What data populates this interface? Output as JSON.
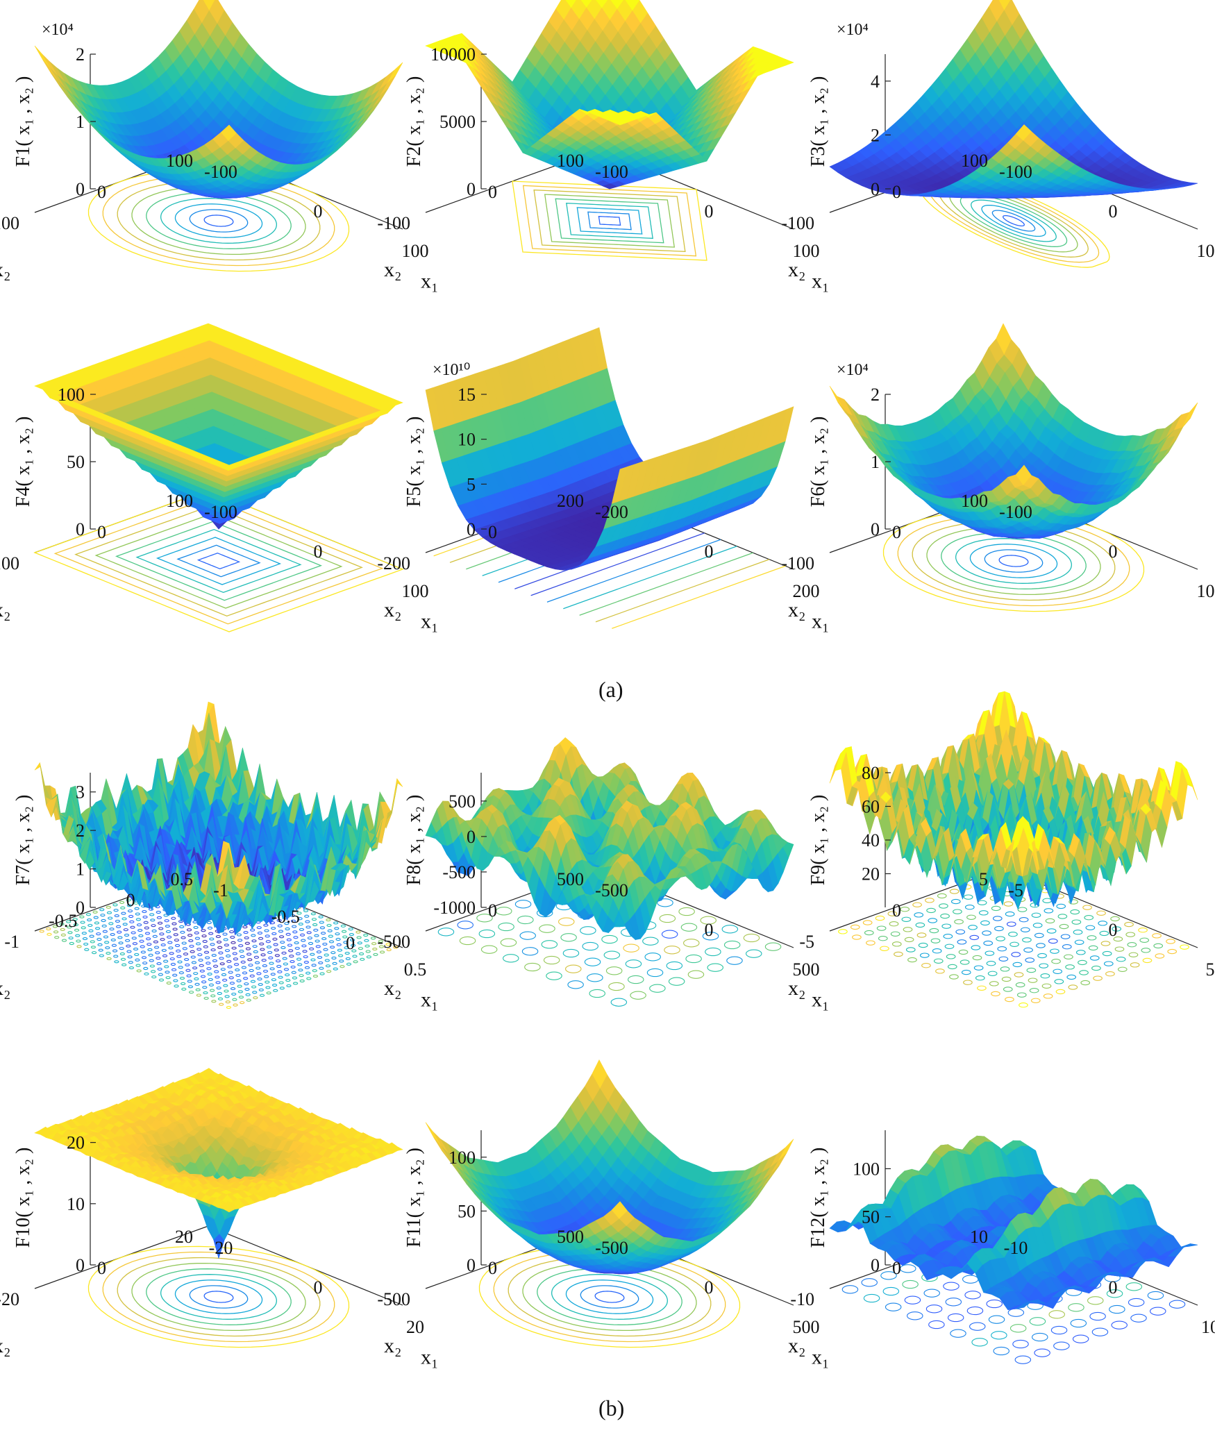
{
  "figure": {
    "captions": [
      "(a)",
      "(b)"
    ]
  },
  "colormap": [
    "#3e26a8",
    "#2f5efe",
    "#1889e6",
    "#12aed6",
    "#2bc6a0",
    "#82c960",
    "#d2c13f",
    "#fec937",
    "#f9fb15"
  ],
  "chart_data": [
    {
      "type": "surface",
      "func": "sphere",
      "label": "F1",
      "zlabel": "F1( x₁ , x₂ )",
      "multiplier": "×10⁴",
      "zticks": [
        "0",
        "1",
        "2"
      ],
      "zlim": [
        0,
        2
      ],
      "x1_ticks": [
        "-100",
        "0",
        "100"
      ],
      "x2_ticks": [
        "-100",
        "0",
        "100"
      ],
      "xlabel": "x₁",
      "ylabel": "x₂",
      "xlim": [
        -100,
        100
      ],
      "ylim": [
        -100,
        100
      ],
      "contour": "rings"
    },
    {
      "type": "surface",
      "func": "abs_sum",
      "label": "F2",
      "zlabel": "F2( x₁ , x₂ )",
      "multiplier": "",
      "zticks": [
        "0",
        "5000",
        "10000"
      ],
      "zlim": [
        0,
        10000
      ],
      "x1_ticks": [
        "-100",
        "0",
        "100"
      ],
      "x2_ticks": [
        "-100",
        "0",
        "100"
      ],
      "xlabel": "x₁",
      "ylabel": "x₂",
      "xlim": [
        -100,
        100
      ],
      "ylim": [
        -100,
        100
      ],
      "contour": "diamond"
    },
    {
      "type": "surface",
      "func": "schwefel12",
      "label": "F3",
      "zlabel": "F3( x₁ , x₂ )",
      "multiplier": "×10⁴",
      "zticks": [
        "0",
        "2",
        "4"
      ],
      "zlim": [
        0,
        5
      ],
      "x1_ticks": [
        "-100",
        "0",
        "100"
      ],
      "x2_ticks": [
        "-100",
        "0",
        "100"
      ],
      "xlabel": "x₁",
      "ylabel": "x₂",
      "xlim": [
        -100,
        100
      ],
      "ylim": [
        -100,
        100
      ],
      "contour": "ellipse"
    },
    {
      "type": "surface",
      "func": "max_abs",
      "label": "F4",
      "zlabel": "F4( x₁ , x₂ )",
      "multiplier": "",
      "zticks": [
        "0",
        "50",
        "100"
      ],
      "zlim": [
        0,
        100
      ],
      "x1_ticks": [
        "-100",
        "0",
        "100"
      ],
      "x2_ticks": [
        "-100",
        "0",
        "100"
      ],
      "xlabel": "x₁",
      "ylabel": "x₂",
      "xlim": [
        -100,
        100
      ],
      "ylim": [
        -100,
        100
      ],
      "contour": "square"
    },
    {
      "type": "surface",
      "func": "rosenbrock",
      "label": "F5",
      "zlabel": "F5( x₁ , x₂ )",
      "multiplier": "×10¹⁰",
      "zticks": [
        "0",
        "5",
        "10",
        "15"
      ],
      "zlim": [
        0,
        15
      ],
      "x1_ticks": [
        "-200",
        "0",
        "200"
      ],
      "x2_ticks": [
        "-200",
        "0",
        "200"
      ],
      "xlabel": "x₁",
      "ylabel": "x₂",
      "xlim": [
        -200,
        200
      ],
      "ylim": [
        -200,
        200
      ],
      "contour": "lines"
    },
    {
      "type": "surface",
      "func": "step",
      "label": "F6",
      "zlabel": "F6( x₁ , x₂ )",
      "multiplier": "×10⁴",
      "zticks": [
        "0",
        "1",
        "2"
      ],
      "zlim": [
        0,
        2
      ],
      "x1_ticks": [
        "-100",
        "0",
        "100"
      ],
      "x2_ticks": [
        "-100",
        "0",
        "100"
      ],
      "xlabel": "x₁",
      "ylabel": "x₂",
      "xlim": [
        -100,
        100
      ],
      "ylim": [
        -100,
        100
      ],
      "contour": "rings"
    },
    {
      "type": "surface",
      "func": "quartic_noise",
      "label": "F7",
      "zlabel": "F7( x₁ , x₂ )",
      "multiplier": "",
      "zticks": [
        "0",
        "1",
        "2",
        "3"
      ],
      "zlim": [
        0,
        3.5
      ],
      "x1_ticks": [
        "-1",
        "-0.5",
        "0",
        "0.5"
      ],
      "x2_ticks": [
        "-1",
        "-0.5",
        "0",
        "0.5"
      ],
      "xlabel": "x₁",
      "ylabel": "x₂",
      "xlim": [
        -1,
        1
      ],
      "ylim": [
        -1,
        1
      ],
      "contour": "noise"
    },
    {
      "type": "surface",
      "func": "schwefel",
      "label": "F8",
      "zlabel": "F8( x₁ , x₂ )",
      "multiplier": "",
      "zticks": [
        "-1000",
        "-500",
        "0",
        "500"
      ],
      "zlim": [
        -1000,
        900
      ],
      "x1_ticks": [
        "-500",
        "0",
        "500"
      ],
      "x2_ticks": [
        "-500",
        "0",
        "500"
      ],
      "xlabel": "x₁",
      "ylabel": "x₂",
      "xlim": [
        -500,
        500
      ],
      "ylim": [
        -500,
        500
      ],
      "contour": "blobs"
    },
    {
      "type": "surface",
      "func": "rastrigin",
      "label": "F9",
      "zlabel": "F9( x₁ , x₂ )",
      "multiplier": "",
      "zticks": [
        "20",
        "40",
        "60",
        "80"
      ],
      "zlim": [
        0,
        80
      ],
      "x1_ticks": [
        "-5",
        "0",
        "5"
      ],
      "x2_ticks": [
        "-5",
        "0",
        "5"
      ],
      "xlabel": "x₁",
      "ylabel": "x₂",
      "xlim": [
        -5,
        5
      ],
      "ylim": [
        -5,
        5
      ],
      "contour": "dots"
    },
    {
      "type": "surface",
      "func": "ackley",
      "label": "F10",
      "zlabel": "F10( x₁ , x₂ )",
      "multiplier": "",
      "zticks": [
        "0",
        "10",
        "20"
      ],
      "zlim": [
        0,
        22
      ],
      "x1_ticks": [
        "-20",
        "0",
        "20"
      ],
      "x2_ticks": [
        "-20",
        "0",
        "20"
      ],
      "xlabel": "x₁",
      "ylabel": "x₂",
      "xlim": [
        -20,
        20
      ],
      "ylim": [
        -20,
        20
      ],
      "contour": "rings"
    },
    {
      "type": "surface",
      "func": "griewank",
      "label": "F11",
      "zlabel": "F11( x₁ , x₂ )",
      "multiplier": "",
      "zticks": [
        "0",
        "50",
        "100"
      ],
      "zlim": [
        0,
        125
      ],
      "x1_ticks": [
        "-500",
        "0",
        "500"
      ],
      "x2_ticks": [
        "-500",
        "0",
        "500"
      ],
      "xlabel": "x₁",
      "ylabel": "x₂",
      "xlim": [
        -500,
        500
      ],
      "ylim": [
        -500,
        500
      ],
      "contour": "rings"
    },
    {
      "type": "surface",
      "func": "penalized",
      "label": "F12",
      "zlabel": "F12( x₁ , x₂ )",
      "multiplier": "",
      "zticks": [
        "0",
        "50",
        "100"
      ],
      "zlim": [
        0,
        140
      ],
      "x1_ticks": [
        "-10",
        "0",
        "10"
      ],
      "x2_ticks": [
        "-10",
        "0",
        "10"
      ],
      "xlabel": "x₁",
      "ylabel": "x₂",
      "xlim": [
        -10,
        10
      ],
      "ylim": [
        -10,
        10
      ],
      "contour": "blobs"
    }
  ]
}
